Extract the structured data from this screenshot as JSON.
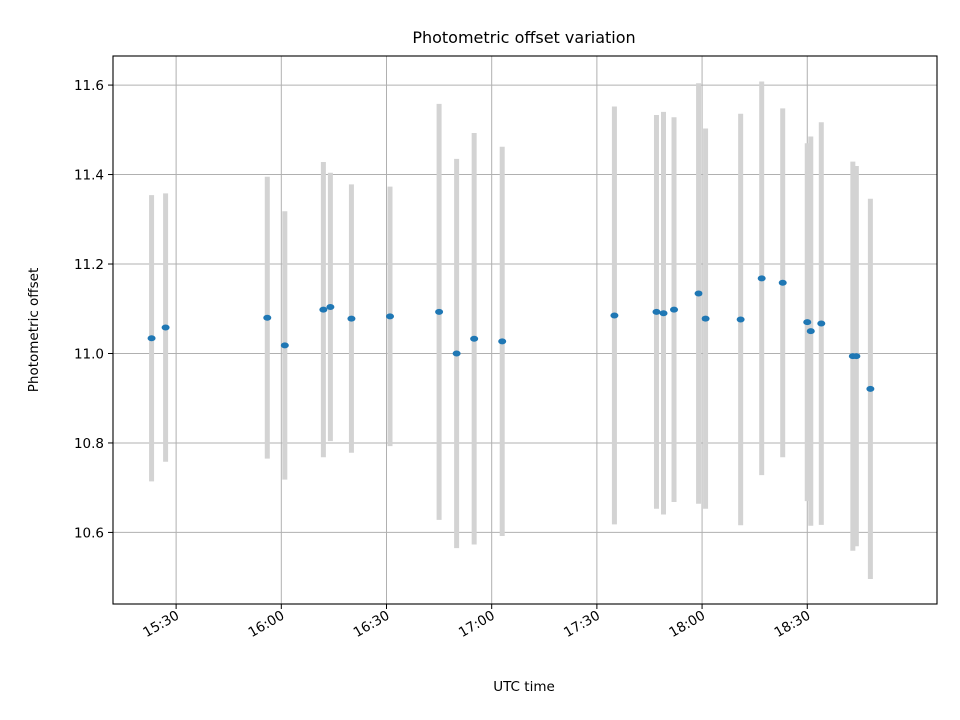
{
  "chart_data": {
    "type": "scatter",
    "title": "Photometric offset variation",
    "xlabel": "UTC time",
    "ylabel": "Photometric offset",
    "xlim": [
      "15:12",
      "19:07"
    ],
    "ylim": [
      10.44,
      11.665
    ],
    "x_ticks": [
      "15:30",
      "16:00",
      "16:30",
      "17:00",
      "17:30",
      "18:00",
      "18:30"
    ],
    "y_ticks": [
      "10.6",
      "10.8",
      "11.0",
      "11.2",
      "11.4",
      "11.6"
    ],
    "grid": true,
    "colors": {
      "marker": "#1f77b4",
      "errorbar": "#d3d3d3"
    },
    "points": [
      {
        "t": "15:23",
        "y": 11.034,
        "err": 0.32
      },
      {
        "t": "15:27",
        "y": 11.058,
        "err": 0.3
      },
      {
        "t": "15:56",
        "y": 11.08,
        "err": 0.315
      },
      {
        "t": "16:01",
        "y": 11.018,
        "err": 0.3
      },
      {
        "t": "16:12",
        "y": 11.098,
        "err": 0.33
      },
      {
        "t": "16:14",
        "y": 11.104,
        "err": 0.3
      },
      {
        "t": "16:20",
        "y": 11.078,
        "err": 0.3
      },
      {
        "t": "16:31",
        "y": 11.083,
        "err": 0.29
      },
      {
        "t": "16:45",
        "y": 11.093,
        "err": 0.465
      },
      {
        "t": "16:50",
        "y": 11.0,
        "err": 0.435
      },
      {
        "t": "16:55",
        "y": 11.033,
        "err": 0.46
      },
      {
        "t": "17:03",
        "y": 11.027,
        "err": 0.435
      },
      {
        "t": "17:35",
        "y": 11.085,
        "err": 0.467
      },
      {
        "t": "17:47",
        "y": 11.093,
        "err": 0.44
      },
      {
        "t": "17:49",
        "y": 11.09,
        "err": 0.45
      },
      {
        "t": "17:52",
        "y": 11.098,
        "err": 0.43
      },
      {
        "t": "17:59",
        "y": 11.134,
        "err": 0.47
      },
      {
        "t": "18:01",
        "y": 11.078,
        "err": 0.425
      },
      {
        "t": "18:11",
        "y": 11.076,
        "err": 0.46
      },
      {
        "t": "18:17",
        "y": 11.168,
        "err": 0.44
      },
      {
        "t": "18:23",
        "y": 11.158,
        "err": 0.39
      },
      {
        "t": "18:30",
        "y": 11.07,
        "err": 0.4
      },
      {
        "t": "18:31",
        "y": 11.05,
        "err": 0.435
      },
      {
        "t": "18:34",
        "y": 11.067,
        "err": 0.45
      },
      {
        "t": "18:43",
        "y": 10.994,
        "err": 0.435
      },
      {
        "t": "18:44",
        "y": 10.994,
        "err": 0.425
      },
      {
        "t": "18:48",
        "y": 10.921,
        "err": 0.425
      }
    ]
  }
}
